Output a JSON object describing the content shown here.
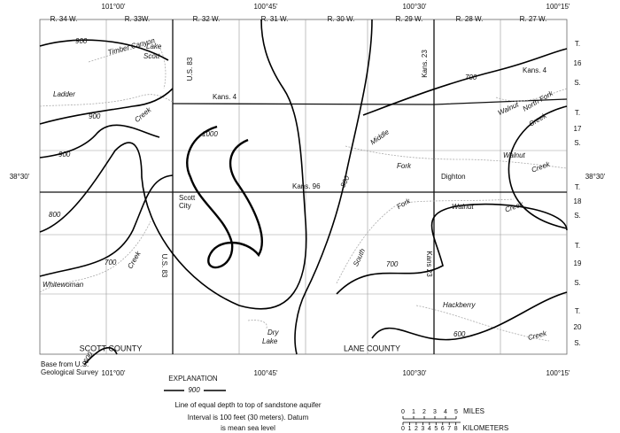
{
  "longitudes": [
    "101°00'",
    "100°45'",
    "100°30'",
    "100°15'"
  ],
  "latitude": "38°30'",
  "ranges": [
    "R. 34 W.",
    "R. 33W.",
    "R. 32 W.",
    "R. 31 W.",
    "R. 30 W.",
    "R. 29 W.",
    "R. 28 W.",
    "R. 27 W."
  ],
  "township_prefix": "T.",
  "township_suffix": "S.",
  "townships": [
    "16",
    "17",
    "18",
    "19",
    "20"
  ],
  "contour_labels": [
    "900",
    "900",
    "900",
    "1000",
    "800",
    "700",
    "800",
    "700",
    "700",
    "600",
    "600"
  ],
  "places": [
    "Scott",
    "City",
    "Dighton",
    "Dry",
    "Lake"
  ],
  "streams": [
    "Timber Canyon",
    "Lake",
    "Scott",
    "Ladder",
    "Creek",
    "Whitewoman",
    "Creek",
    "Middle",
    "Fork",
    "South",
    "Fork",
    "Walnut",
    "Creek",
    "North Fork",
    "Walnut",
    "Creek",
    "Walnut",
    "Creek",
    "Hackberry",
    "Creek"
  ],
  "roads": [
    "U.S. 83",
    "Kans. 4",
    "Kans. 4",
    "Kans. 96",
    "U.S. 83",
    "Kans. 23",
    "Kans 23"
  ],
  "counties": [
    "SCOTT COUNTY",
    "LANE COUNTY"
  ],
  "base_note": [
    "Base from U.S.",
    "Geological Survey"
  ],
  "explanation": {
    "title": "EXPLANATION",
    "legend_label": "900",
    "lines": [
      "Line of equal depth to top of sandstone aquifer",
      "Interval is 100 feet (30 meters). Datum",
      "is mean sea level"
    ]
  },
  "scale": {
    "miles": [
      "0",
      "1",
      "2",
      "3",
      "4",
      "5"
    ],
    "miles_label": "MILES",
    "km": [
      "0",
      "1",
      "2",
      "3",
      "4",
      "5",
      "6",
      "7",
      "8"
    ],
    "km_label": "KILOMETERS"
  }
}
